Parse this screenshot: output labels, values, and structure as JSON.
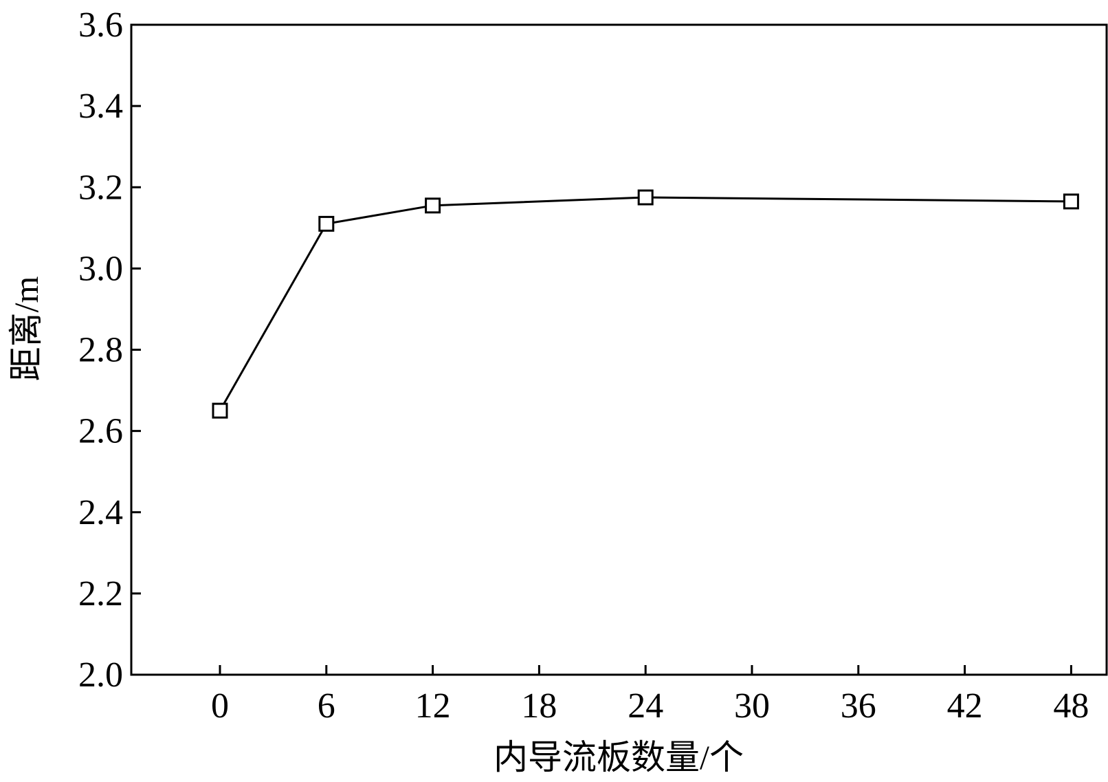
{
  "chart_data": {
    "type": "line",
    "title": "",
    "xlabel": "内导流板数量/个",
    "ylabel": "距离/m",
    "xlim": [
      -5,
      50
    ],
    "ylim": [
      2.0,
      3.6
    ],
    "xticks": [
      0,
      6,
      12,
      18,
      24,
      30,
      36,
      42,
      48
    ],
    "xtick_labels": [
      "0",
      "6",
      "12",
      "18",
      "24",
      "30",
      "36",
      "42",
      "48"
    ],
    "yticks": [
      2.0,
      2.2,
      2.4,
      2.6,
      2.8,
      3.0,
      3.2,
      3.4,
      3.6
    ],
    "ytick_labels": [
      "2.0",
      "2.2",
      "2.4",
      "2.6",
      "2.8",
      "3.0",
      "3.2",
      "3.4",
      "3.6"
    ],
    "grid": false,
    "legend": "none",
    "marker": "open-square",
    "color": "#000000",
    "series": [
      {
        "x": [
          0,
          6,
          12,
          24,
          48
        ],
        "y": [
          2.65,
          3.11,
          3.155,
          3.175,
          3.165
        ]
      }
    ]
  }
}
